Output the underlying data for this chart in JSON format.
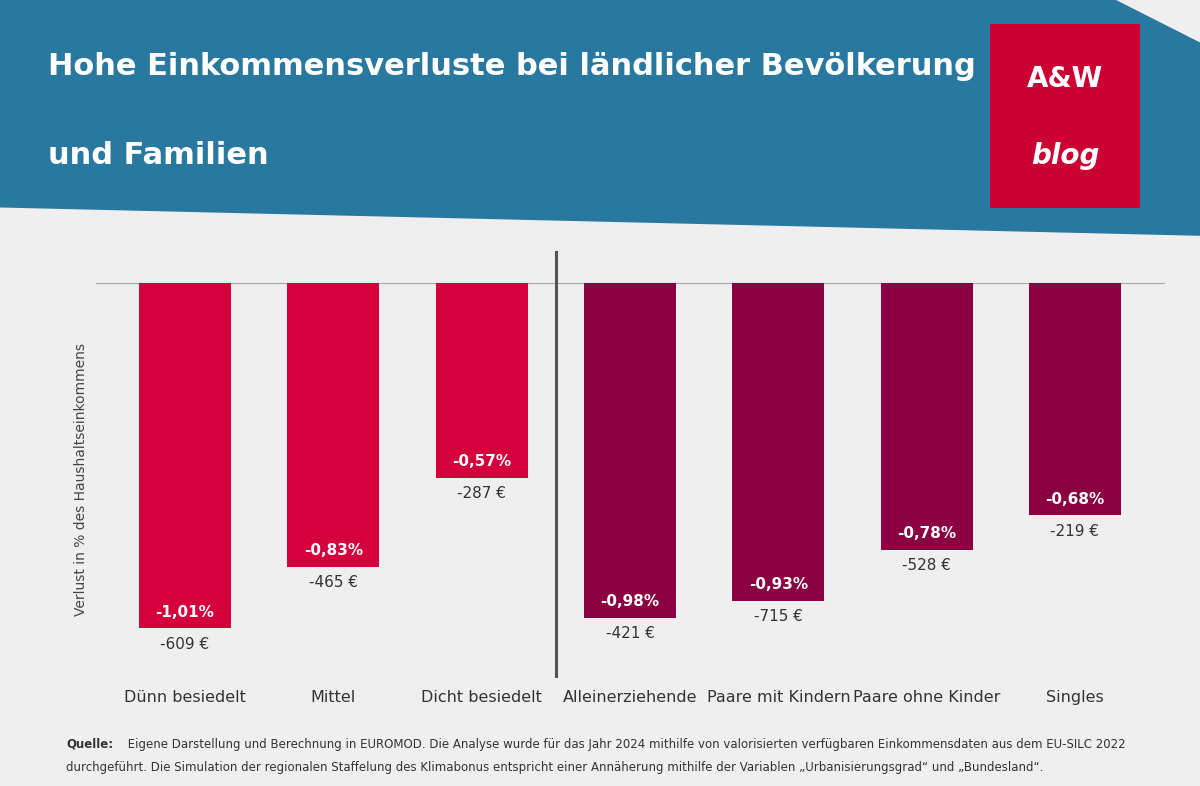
{
  "categories": [
    "Dünn besiedelt",
    "Mittel",
    "Dicht besiedelt",
    "Alleinerziehende",
    "Paare mit Kindern",
    "Paare ohne Kinder",
    "Singles"
  ],
  "values": [
    -1.01,
    -0.83,
    -0.57,
    -0.98,
    -0.93,
    -0.78,
    -0.68
  ],
  "euro_values": [
    "-609 €",
    "-465 €",
    "-287 €",
    "-421 €",
    "-715 €",
    "-528 €",
    "-219 €"
  ],
  "pct_labels": [
    "-1,01%",
    "-0,83%",
    "-0,57%",
    "-0,98%",
    "-0,93%",
    "-0,78%",
    "-0,68%"
  ],
  "bar_colors": [
    "#d4003c",
    "#d4003c",
    "#d4003c",
    "#8b0040",
    "#8b0040",
    "#8b0040",
    "#8b0040"
  ],
  "title_line1": "Hohe Einkommensverluste bei ländlicher Bevölkerung",
  "title_line2": "und Familien",
  "ylabel": "Verlust in % des Haushaltseinkommens",
  "header_bg_color": "#2878a0",
  "source_line1": "Quelle: Eigene Darstellung und Berechnung in EUROMOD. Die Analyse wurde für das Jahr 2024 mithilfe von valorisierten verfügbaren Einkommensdaten aus dem EU-SILC 2022",
  "source_line2": "durchgeführt. Die Simulation der regionalen Staffelung des Klimabonus entspricht einer Annäherung mithilfe der Variablen „Urbanisierungsgrad“ und „Bundesland“.",
  "background_color": "#efefef",
  "ylim": [
    -1.15,
    0.0
  ],
  "divider_after_index": 2,
  "logo_bg_color": "#cc0033",
  "logo_text_line1": "A&W",
  "logo_text_line2": "blog"
}
